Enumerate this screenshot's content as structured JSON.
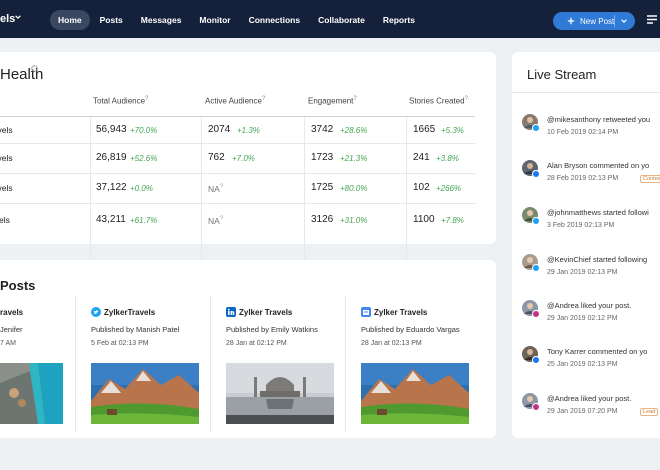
{
  "topbar": {
    "brand": "els",
    "nav": [
      {
        "label": "Home",
        "active": true
      },
      {
        "label": "Posts"
      },
      {
        "label": "Messages"
      },
      {
        "label": "Monitor"
      },
      {
        "label": "Connections"
      },
      {
        "label": "Collaborate"
      },
      {
        "label": "Reports"
      }
    ],
    "new_post_label": "New Post"
  },
  "health": {
    "title": "Health",
    "columns": [
      "Total Audience",
      "Active Audience",
      "Engagement",
      "Stories Created"
    ],
    "rows": [
      {
        "label": "ravels",
        "cells": [
          {
            "value": "56,943",
            "pct": "+70.0%"
          },
          {
            "value": "2074",
            "pct": "+1.3%"
          },
          {
            "value": "3742",
            "pct": "+28.6%"
          },
          {
            "value": "1665",
            "pct": "+5.3%"
          }
        ]
      },
      {
        "label": "ravels",
        "cells": [
          {
            "value": "26,819",
            "pct": "+52.6%"
          },
          {
            "value": "762",
            "pct": "+7.0%"
          },
          {
            "value": "1723",
            "pct": "+21.3%"
          },
          {
            "value": "241",
            "pct": "+3.8%"
          }
        ]
      },
      {
        "label": "ravels",
        "cells": [
          {
            "value": "37,122",
            "pct": "+0.0%"
          },
          {
            "value": "NA",
            "pct": ""
          },
          {
            "value": "1725",
            "pct": "+80.0%"
          },
          {
            "value": "102",
            "pct": "+266%"
          }
        ]
      },
      {
        "label": "avels",
        "cells": [
          {
            "value": "43,211",
            "pct": "+61.7%"
          },
          {
            "value": "NA",
            "pct": ""
          },
          {
            "value": "3126",
            "pct": "+31.0%"
          },
          {
            "value": "1100",
            "pct": "+7.8%"
          }
        ]
      }
    ]
  },
  "posts": {
    "title": "Posts",
    "items": [
      {
        "title": "ravels",
        "by": "Jenifer",
        "date": "7 AM",
        "network": "instagram",
        "image": "resort-pool"
      },
      {
        "title": "ZylkerTravels",
        "by": "Published by Manish Patel",
        "date": "5 Feb at 02:13 PM",
        "network": "twitter",
        "image": "mountains"
      },
      {
        "title": "Zylker Travels",
        "by": "Published by Emily Watkins",
        "date": "28 Jan at 02:12 PM",
        "network": "linkedin",
        "image": "taj-mahal"
      },
      {
        "title": "Zylker Travels",
        "by": "Published by Eduardo Vargas",
        "date": "28 Jan at 02:13 PM",
        "network": "google-business",
        "image": "mountains"
      }
    ]
  },
  "live": {
    "title": "Live Stream",
    "activities": [
      {
        "text": "@mikesanthony retweeted you",
        "time": "10 Feb 2019 02:14 PM",
        "tag": "",
        "network": "twitter"
      },
      {
        "text": "Alan Bryson commented on yo",
        "time": "28 Feb 2019 02:13 PM",
        "tag": "Contest",
        "network": "facebook"
      },
      {
        "text": "@johnmatthews started followi",
        "time": "3 Feb 2019 02:13 PM",
        "tag": "",
        "network": "twitter"
      },
      {
        "text": "@KevinChief started following",
        "time": "29 Jan 2019 02:13 PM",
        "tag": "",
        "network": "twitter"
      },
      {
        "text": "@Andrea liked your post.",
        "time": "29 Jan 2019 02:12 PM",
        "tag": "",
        "network": "instagram"
      },
      {
        "text": "Tony Karrer commented on yo",
        "time": "25 Jan 2019 02:13 PM",
        "tag": "",
        "network": "facebook"
      },
      {
        "text": "@Andrea liked your post.",
        "time": "29 Jan 2019 07:20 PM",
        "tag": "Lead",
        "network": "instagram"
      }
    ]
  },
  "colors": {
    "topbar": "#15213a",
    "accent": "#2f7ad6",
    "positive": "#45a553"
  }
}
